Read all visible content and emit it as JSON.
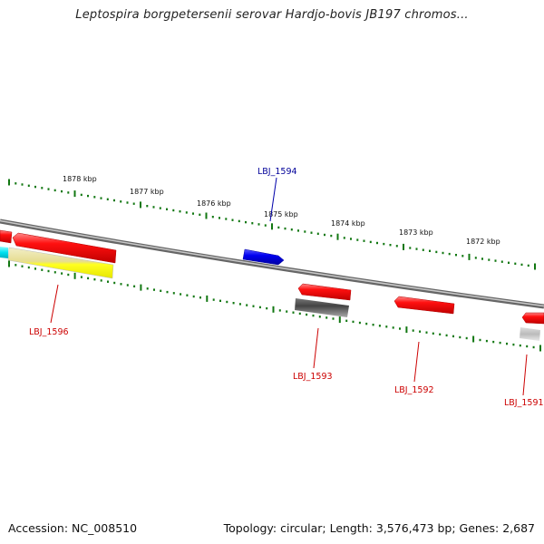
{
  "title": "Leptospira borgpetersenii serovar Hardjo-bovis JB197 chromos...",
  "footer": {
    "accession": "Accession: NC_008510",
    "topology": "Topology: circular; Length: 3,576,473 bp; Genes: 2,687"
  },
  "scale_labels": [
    "1878 kbp",
    "1877 kbp",
    "1876 kbp",
    "1875 kbp",
    "1874 kbp",
    "1873 kbp",
    "1872 kbp"
  ],
  "genes": [
    {
      "label": "LBJ_1594",
      "color": "#0000ee",
      "label_color": "#000099"
    },
    {
      "label": "LBJ_1596",
      "color": "#ff0000",
      "label_color": "#cc0000"
    },
    {
      "label": "LBJ_1593",
      "color": "#ff0000",
      "label_color": "#cc0000"
    },
    {
      "label": "LBJ_1592",
      "color": "#ff0000",
      "label_color": "#cc0000"
    },
    {
      "label": "LBJ_1591",
      "color": "#ff0000",
      "label_color": "#cc0000"
    }
  ]
}
